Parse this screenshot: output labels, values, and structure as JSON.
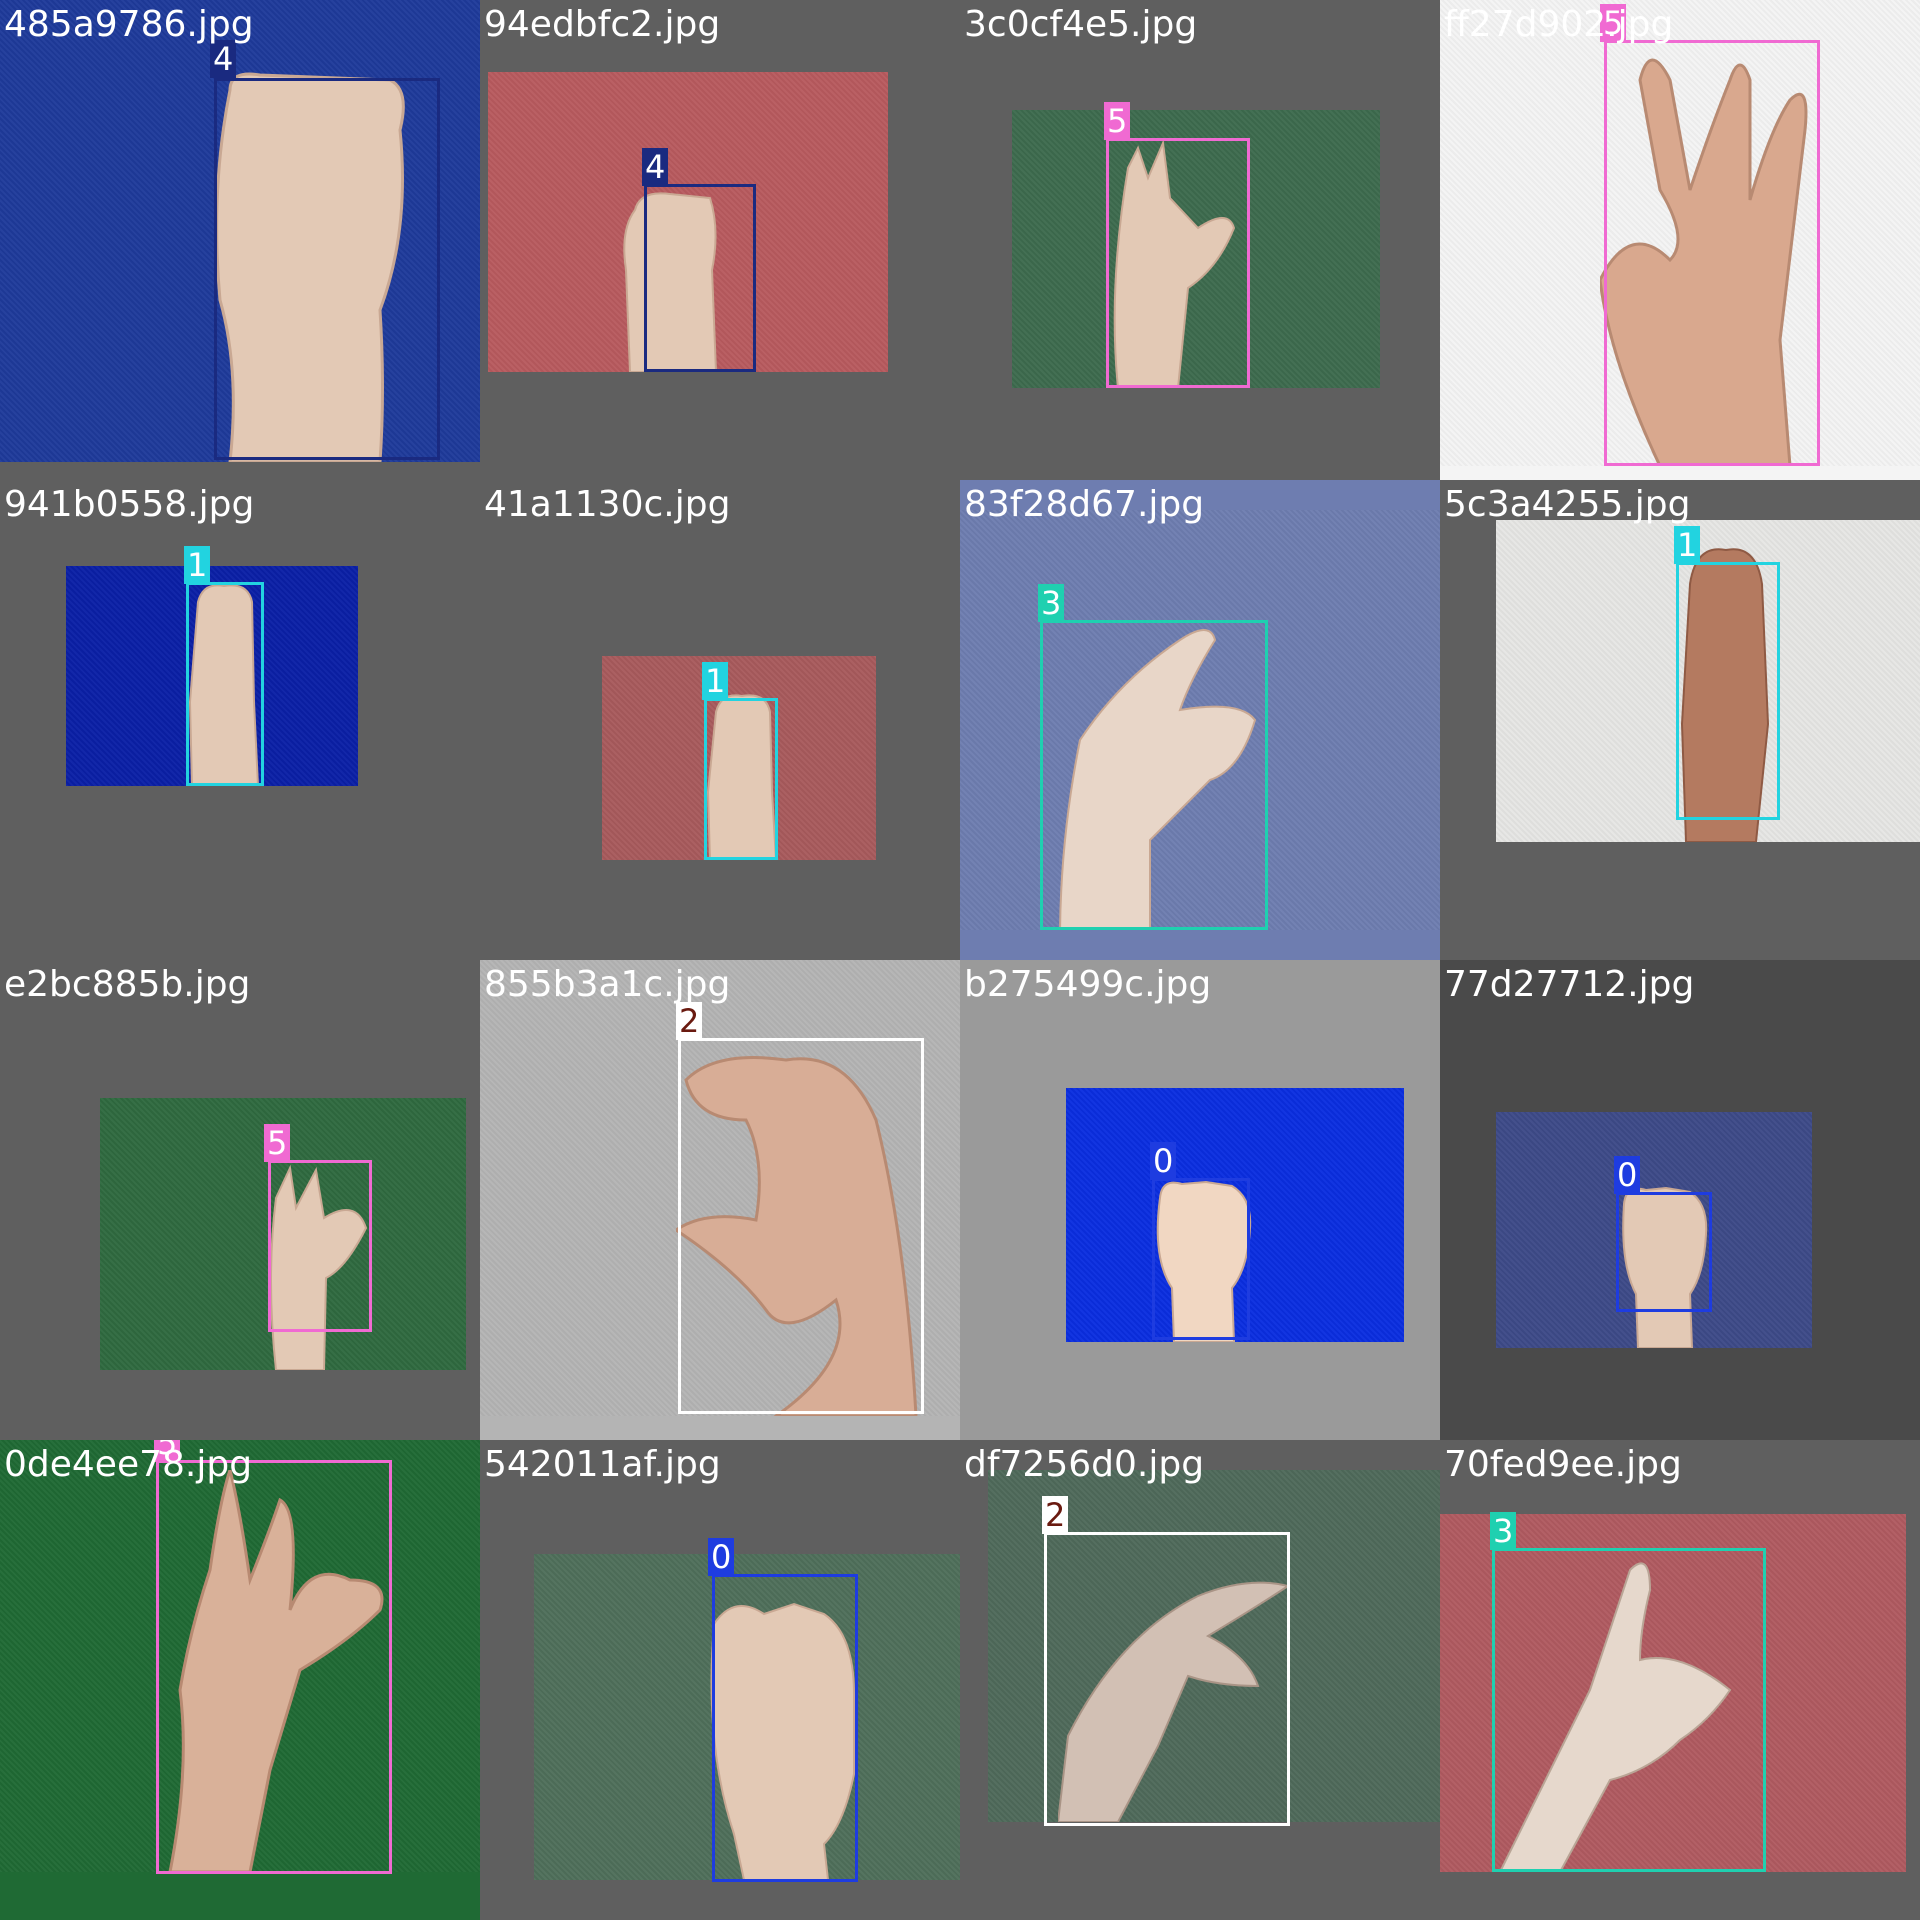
{
  "mosaic": {
    "tiles": [
      {
        "filename": "485a9786.jpg",
        "label": "4",
        "label_color": "#1a2a80",
        "tag_text_color": "#ffffff",
        "bg": "#1e3a9a",
        "cell_bg": "#5f5f5f"
      },
      {
        "filename": "94edbfc2.jpg",
        "label": "4",
        "label_color": "#1a2a80",
        "tag_text_color": "#ffffff",
        "bg": "#b85a5e",
        "cell_bg": "#5f5f5f"
      },
      {
        "filename": "3c0cf4e5.jpg",
        "label": "5",
        "label_color": "#f06ad2",
        "tag_text_color": "#ffffff",
        "bg": "#3d6b4e",
        "cell_bg": "#5f5f5f"
      },
      {
        "filename": "ff27d902.jpg",
        "label": "5",
        "label_color": "#f06ad2",
        "tag_text_color": "#ffffff",
        "bg": "#f4f4f4",
        "cell_bg": "#f4f4f4"
      },
      {
        "filename": "941b0558.jpg",
        "label": "1",
        "label_color": "#22d3e0",
        "tag_text_color": "#ffffff",
        "bg": "#0a1fa6",
        "cell_bg": "#5f5f5f"
      },
      {
        "filename": "41a1130c.jpg",
        "label": "1",
        "label_color": "#22d3e0",
        "tag_text_color": "#ffffff",
        "bg": "#a85a5c",
        "cell_bg": "#5f5f5f"
      },
      {
        "filename": "83f28d67.jpg",
        "label": "3",
        "label_color": "#1fd0b0",
        "tag_text_color": "#ffffff",
        "bg": "#6e7db0",
        "cell_bg": "#6e7db0"
      },
      {
        "filename": "5c3a4255.jpg",
        "label": "1",
        "label_color": "#22d3e0",
        "tag_text_color": "#ffffff",
        "bg": "#e6e6e4",
        "cell_bg": "#5f5f5f"
      },
      {
        "filename": "e2bc885b.jpg",
        "label": "5",
        "label_color": "#f06ad2",
        "tag_text_color": "#ffffff",
        "bg": "#2f6a3f",
        "cell_bg": "#5f5f5f"
      },
      {
        "filename": "855b3a1c.jpg",
        "label": "2",
        "label_color": "#ffffff",
        "tag_text_color": "#6a1a10",
        "bg": "#b4b4b4",
        "cell_bg": "#b4b4b4"
      },
      {
        "filename": "b275499c.jpg",
        "label": "0",
        "label_color": "#1e3ce0",
        "tag_text_color": "#ffffff",
        "bg": "#0a2ee0",
        "cell_bg": "#9a9a9a"
      },
      {
        "filename": "77d27712.jpg",
        "label": "0",
        "label_color": "#1e3ce0",
        "tag_text_color": "#ffffff",
        "bg": "#3d4a88",
        "cell_bg": "#4a4a4a"
      },
      {
        "filename": "0de4ee78.jpg",
        "label": "5",
        "label_color": "#f06ad2",
        "tag_text_color": "#ffffff",
        "bg": "#1f6a34",
        "cell_bg": "#1f6a34"
      },
      {
        "filename": "542011af.jpg",
        "label": "0",
        "label_color": "#1e3ce0",
        "tag_text_color": "#ffffff",
        "bg": "#4f6f5a",
        "cell_bg": "#5f5f5f"
      },
      {
        "filename": "df7256d0.jpg",
        "label": "2",
        "label_color": "#ffffff",
        "tag_text_color": "#6a1a10",
        "bg": "#4f6a5a",
        "cell_bg": "#5f5f5f"
      },
      {
        "filename": "70fed9ee.jpg",
        "label": "3",
        "label_color": "#1fd0b0",
        "tag_text_color": "#ffffff",
        "bg": "#b05a60",
        "cell_bg": "#5f5f5f"
      }
    ]
  },
  "colors": {
    "skin": "#e3c9b5",
    "skin_shadow": "#c9a893"
  }
}
